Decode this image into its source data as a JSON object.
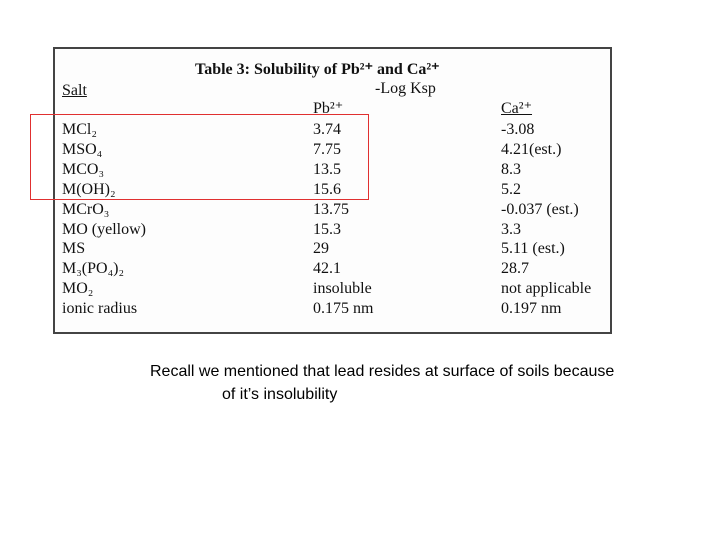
{
  "table": {
    "title": "Table 3: Solubility of Pb²⁺ and Ca²⁺",
    "salt_header": "Salt",
    "group_header": "-Log Ksp",
    "columns": [
      "Pb²⁺",
      "Ca²⁺"
    ],
    "rows": [
      [
        "MCl₂",
        "3.74",
        "-3.08"
      ],
      [
        "MSO₄",
        "7.75",
        "4.21(est.)"
      ],
      [
        "MCO₃",
        "13.5",
        "8.3"
      ],
      [
        "M(OH)₂",
        "15.6",
        "5.2"
      ],
      [
        "MCrO₃",
        "13.75",
        "-0.037 (est.)"
      ],
      [
        "MO (yellow)",
        "15.3",
        "3.3"
      ],
      [
        "MS",
        "29",
        "5.11 (est.)"
      ],
      [
        "M₃(PO₄)₂",
        "42.1",
        "28.7"
      ],
      [
        "MO₂",
        "insoluble",
        "not applicable"
      ],
      [
        "ionic radius",
        "0.175 nm",
        "0.197 nm"
      ]
    ]
  },
  "caption": [
    "Recall we mentioned that lead resides at surface of soils because",
    "of it’s insolubility"
  ]
}
